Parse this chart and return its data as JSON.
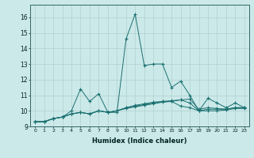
{
  "xlabel": "Humidex (Indice chaleur)",
  "ylabel": "",
  "bg_color": "#cce9e9",
  "grid_color": "#b0d0d0",
  "line_color": "#1a7070",
  "xlim": [
    -0.5,
    23.5
  ],
  "ylim": [
    9.0,
    16.8
  ],
  "yticks": [
    9,
    10,
    11,
    12,
    13,
    14,
    15,
    16
  ],
  "xticks": [
    0,
    1,
    2,
    3,
    4,
    5,
    6,
    7,
    8,
    9,
    10,
    11,
    12,
    13,
    14,
    15,
    16,
    17,
    18,
    19,
    20,
    21,
    22,
    23
  ],
  "series": [
    [
      9.3,
      9.3,
      9.5,
      9.6,
      10.0,
      11.4,
      10.6,
      11.1,
      9.9,
      9.9,
      14.6,
      16.2,
      12.9,
      13.0,
      13.0,
      11.5,
      11.9,
      11.0,
      10.0,
      10.8,
      10.5,
      10.2,
      10.5,
      10.2
    ],
    [
      9.3,
      9.3,
      9.5,
      9.6,
      9.8,
      9.9,
      9.8,
      10.0,
      9.9,
      10.0,
      10.2,
      10.35,
      10.45,
      10.55,
      10.6,
      10.65,
      10.7,
      10.75,
      10.1,
      10.2,
      10.15,
      10.1,
      10.2,
      10.2
    ],
    [
      9.3,
      9.3,
      9.5,
      9.6,
      9.8,
      9.9,
      9.8,
      10.0,
      9.9,
      10.0,
      10.2,
      10.3,
      10.4,
      10.5,
      10.6,
      10.6,
      10.7,
      10.5,
      10.0,
      10.1,
      10.1,
      10.1,
      10.2,
      10.2
    ],
    [
      9.3,
      9.3,
      9.5,
      9.6,
      9.8,
      9.9,
      9.8,
      10.0,
      9.9,
      10.0,
      10.15,
      10.25,
      10.35,
      10.45,
      10.55,
      10.6,
      10.3,
      10.2,
      10.0,
      10.0,
      10.0,
      10.05,
      10.15,
      10.15
    ]
  ]
}
